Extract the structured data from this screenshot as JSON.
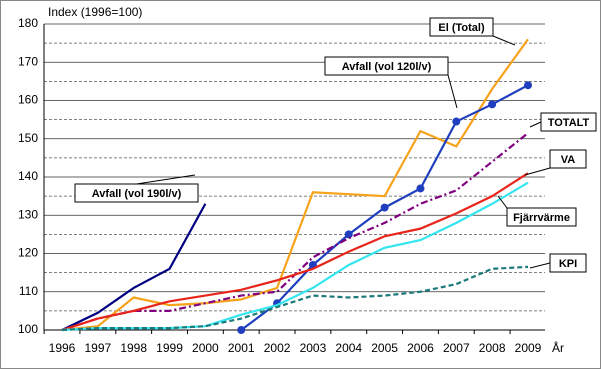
{
  "chart_data": {
    "type": "line",
    "y_axis_label": "Index (1996=100)",
    "x_axis_label": "År",
    "categories": [
      "1996",
      "1997",
      "1998",
      "1999",
      "2000",
      "2001",
      "2002",
      "2003",
      "2004",
      "2005",
      "2006",
      "2007",
      "2008",
      "2009"
    ],
    "ylim": [
      100,
      180
    ],
    "yticks": [
      100,
      110,
      120,
      130,
      140,
      150,
      160,
      170,
      180
    ],
    "minor_yticks": [
      105,
      115,
      125,
      135,
      145,
      155,
      165,
      175
    ],
    "grid": true,
    "series": [
      {
        "name": "Avfall (vol 190l/v)",
        "color": "#000080",
        "style": "solid",
        "values": [
          100,
          104.5,
          111,
          116,
          133,
          null,
          null,
          null,
          null,
          null,
          null,
          null,
          null,
          null
        ]
      },
      {
        "name": "El (Total)",
        "color": "#f7a21b",
        "style": "solid",
        "values": [
          100,
          101,
          108.5,
          106.5,
          107,
          108,
          111,
          136,
          135.5,
          135,
          152,
          148,
          163,
          176
        ]
      },
      {
        "name": "Avfall (vol 120l/v)",
        "color": "#1f3fbf",
        "style": "solid",
        "markers": true,
        "values": [
          null,
          null,
          null,
          null,
          null,
          100,
          107,
          117,
          125,
          132,
          137,
          154.5,
          159,
          164
        ]
      },
      {
        "name": "TOTALT",
        "color": "#800080",
        "style": "dashdot",
        "values": [
          100,
          103,
          105,
          105,
          107,
          109,
          110,
          119,
          124,
          128,
          133,
          136.5,
          144,
          151.5
        ]
      },
      {
        "name": "VA",
        "color": "#e8251b",
        "style": "solid",
        "values": [
          100,
          103,
          105,
          107.5,
          109,
          110.5,
          113,
          116,
          120.5,
          124.5,
          126.5,
          130.5,
          135,
          141
        ]
      },
      {
        "name": "Fjärrvärme",
        "color": "#33e6f0",
        "style": "solid",
        "values": [
          100,
          100.5,
          100.5,
          100.5,
          101,
          104,
          106.5,
          111,
          117,
          121.5,
          123.5,
          128,
          133,
          138.5
        ]
      },
      {
        "name": "KPI",
        "color": "#1c7a7a",
        "style": "dashed",
        "values": [
          100,
          100.5,
          100.5,
          100.5,
          101,
          103,
          106,
          109,
          108.5,
          109,
          110,
          112,
          116,
          116.5
        ]
      }
    ]
  }
}
